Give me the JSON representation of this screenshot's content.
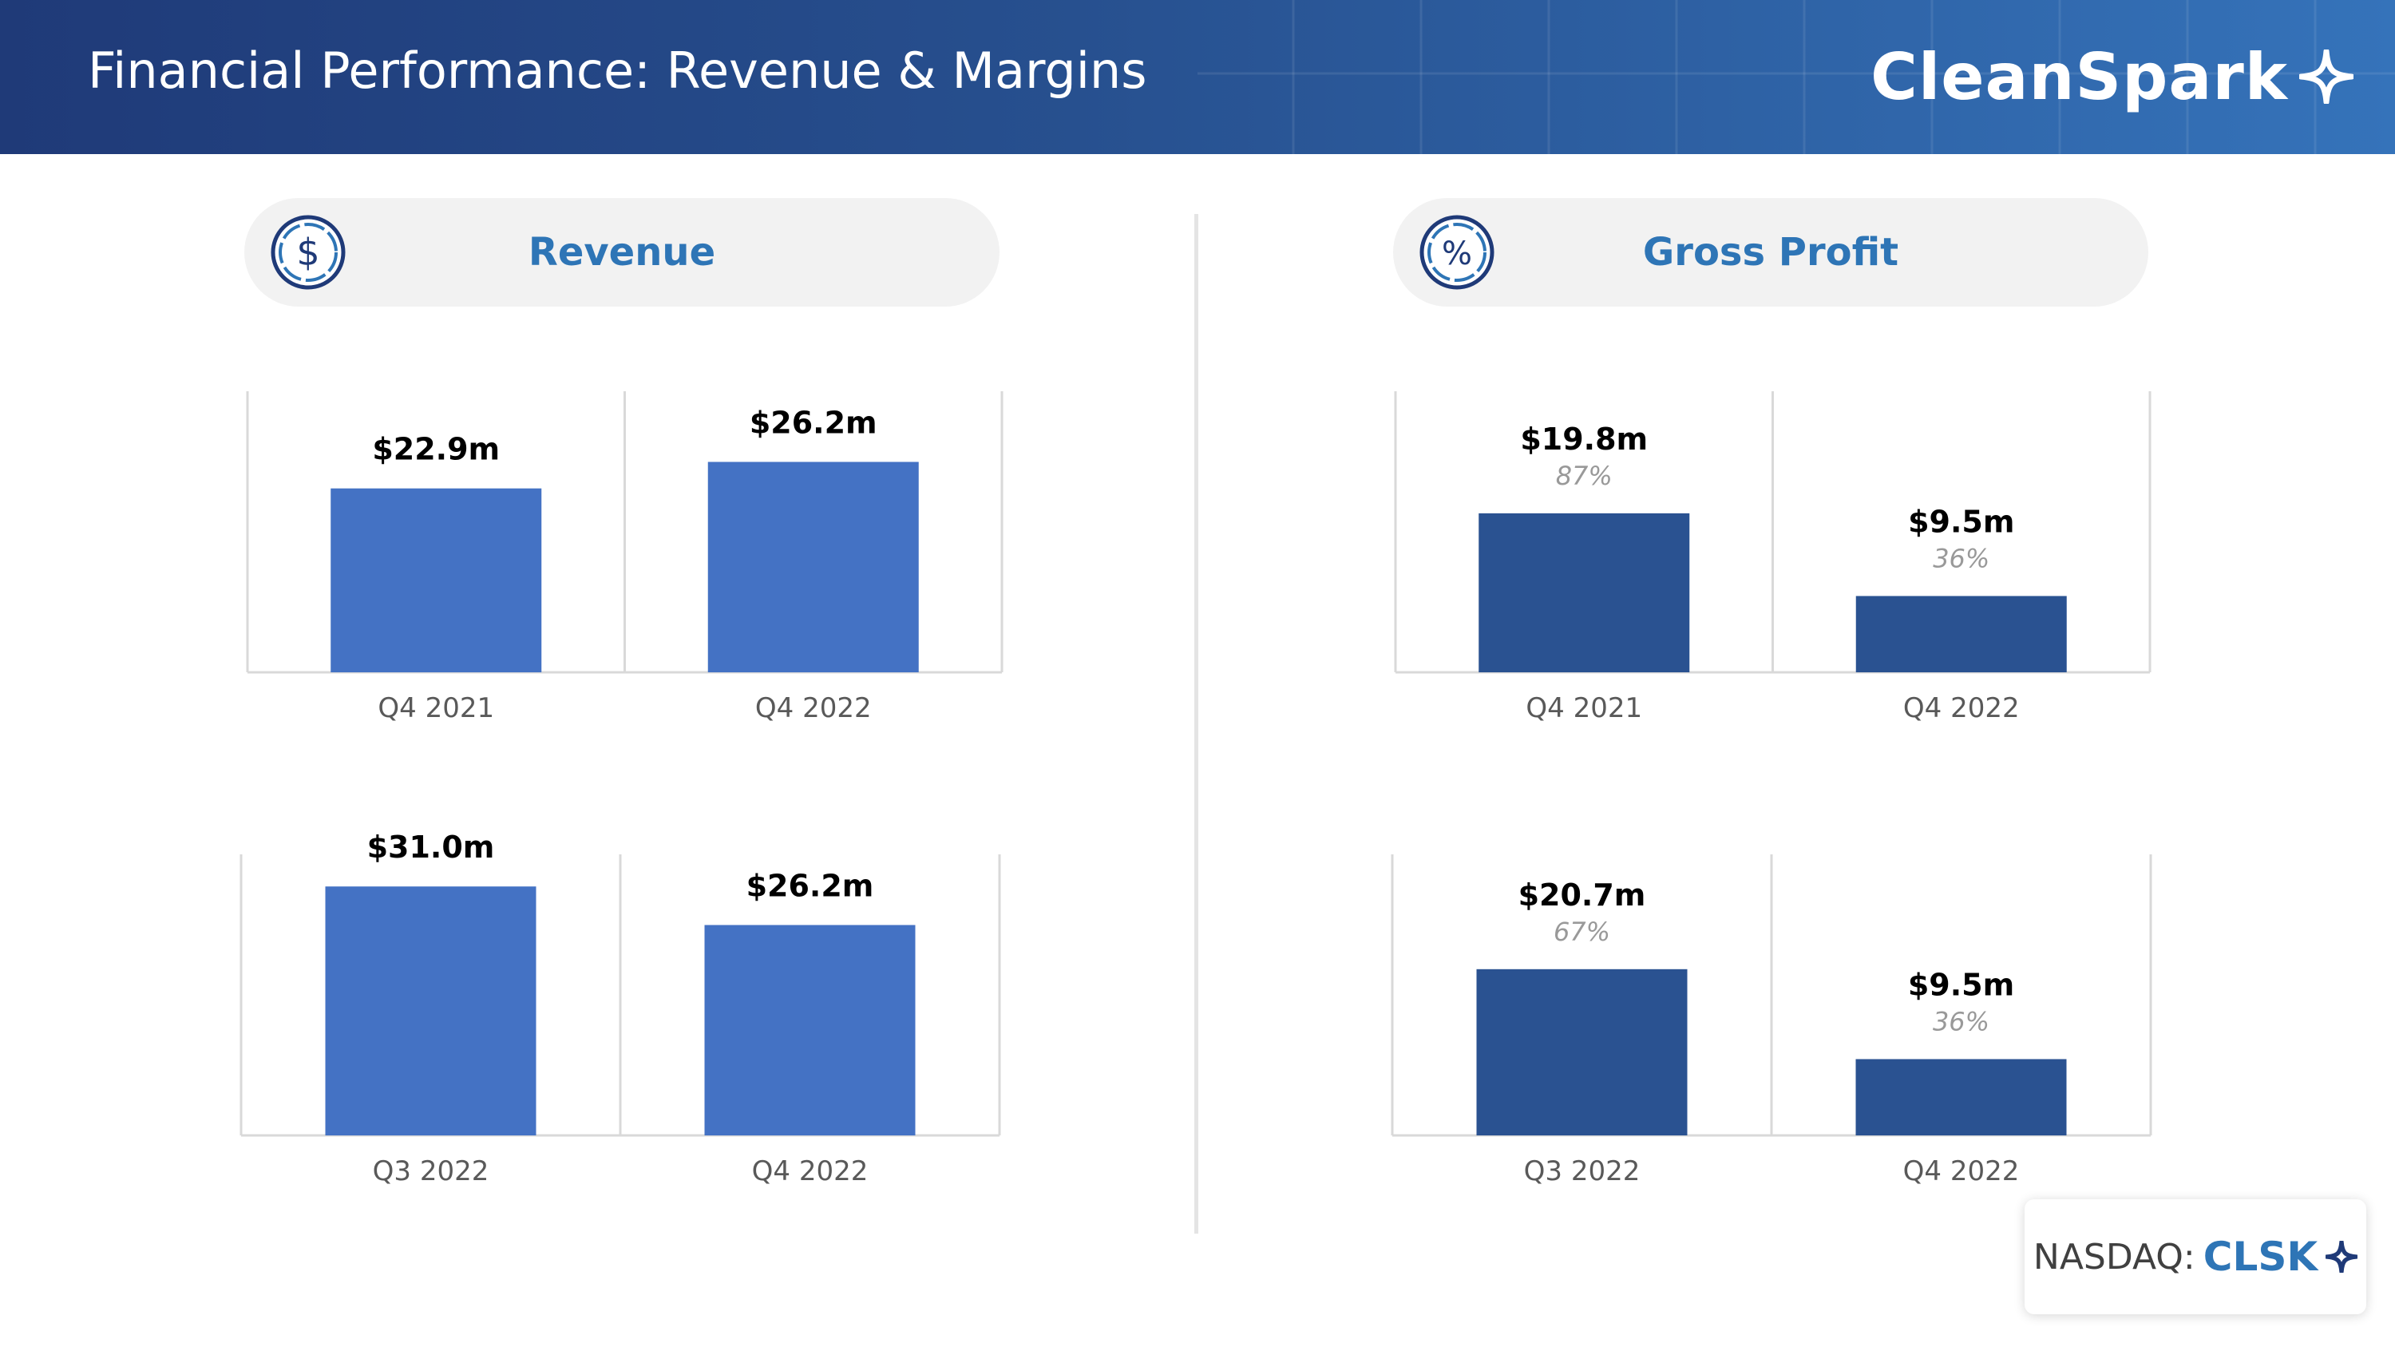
{
  "header": {
    "title": "Financial Performance: Revenue & Margins",
    "logo_text": "CleanSpark"
  },
  "sections": [
    {
      "title": "Revenue",
      "icon": "dollar-coin-icon"
    },
    {
      "title": "Gross Profit",
      "icon": "percent-coin-icon"
    }
  ],
  "colors": {
    "revenue_bar": "#4472c4",
    "gross_profit_bar": "#2a5291",
    "section_title": "#2e75b6",
    "margin_text": "#999999"
  },
  "chart_data": [
    {
      "id": "revenue-yoy",
      "type": "bar",
      "categories": [
        "Q4 2021",
        "Q4 2022"
      ],
      "values": [
        22.9,
        26.2
      ],
      "value_labels": [
        "$22.9m",
        "$26.2m"
      ],
      "ylim": [
        0,
        35
      ]
    },
    {
      "id": "gross-profit-yoy",
      "type": "bar",
      "categories": [
        "Q4 2021",
        "Q4 2022"
      ],
      "values": [
        19.8,
        9.5
      ],
      "value_labels": [
        "$19.8m",
        "$9.5m"
      ],
      "margin_labels": [
        "87%",
        "36%"
      ],
      "ylim": [
        0,
        35
      ]
    },
    {
      "id": "revenue-qoq",
      "type": "bar",
      "categories": [
        "Q3 2022",
        "Q4 2022"
      ],
      "values": [
        31.0,
        26.2
      ],
      "value_labels": [
        "$31.0m",
        "$26.2m"
      ],
      "ylim": [
        0,
        35
      ]
    },
    {
      "id": "gross-profit-qoq",
      "type": "bar",
      "categories": [
        "Q3 2022",
        "Q4 2022"
      ],
      "values": [
        20.7,
        9.5
      ],
      "value_labels": [
        "$20.7m",
        "$9.5m"
      ],
      "margin_labels": [
        "67%",
        "36%"
      ],
      "ylim": [
        0,
        35
      ]
    }
  ],
  "ticker_badge": {
    "exchange": "NASDAQ:",
    "ticker": "CLSK"
  }
}
